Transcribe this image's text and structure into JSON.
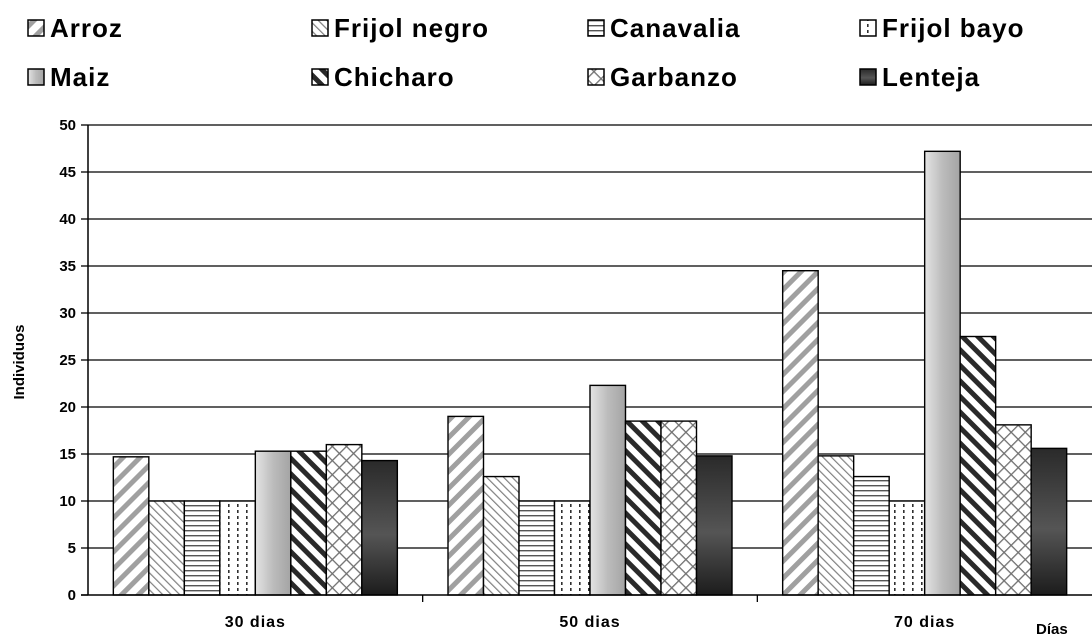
{
  "chart_data": {
    "type": "bar",
    "title": "",
    "xlabel": "Días",
    "ylabel": "Individuos",
    "ylim": [
      0,
      50
    ],
    "ytick_step": 5,
    "ytick_labels": [
      "0",
      "5",
      "10",
      "15",
      "20",
      "25",
      "30",
      "35",
      "40",
      "45",
      "50"
    ],
    "categories": [
      "30 dias",
      "50 dias",
      "70 dias"
    ],
    "grid": "horizontal",
    "legend_position": "top",
    "series": [
      {
        "name": "Arroz",
        "values": [
          14.7,
          19.0,
          34.5
        ],
        "pattern": "wide-diagonal-down",
        "color": "#a0a0a0"
      },
      {
        "name": "Frijol negro",
        "values": [
          10.0,
          12.6,
          14.8
        ],
        "pattern": "light-diagonal-up",
        "color": "#808080"
      },
      {
        "name": "Canavalia",
        "values": [
          10.0,
          10.0,
          12.6
        ],
        "pattern": "horizontal-lines",
        "color": "#606060"
      },
      {
        "name": "Frijol bayo",
        "values": [
          10.0,
          10.0,
          10.0
        ],
        "pattern": "dotted-vertical",
        "color": "#404040"
      },
      {
        "name": "Maiz",
        "values": [
          15.3,
          22.3,
          47.2
        ],
        "pattern": "gradient-grey",
        "color": "#b8b8b8"
      },
      {
        "name": "Chicharo",
        "values": [
          15.3,
          18.5,
          27.5
        ],
        "pattern": "dark-diagonal-up",
        "color": "#303030"
      },
      {
        "name": "Garbanzo",
        "values": [
          16.0,
          18.5,
          18.1
        ],
        "pattern": "diagonal-crosshatch",
        "color": "#707070"
      },
      {
        "name": "Lenteja",
        "values": [
          14.3,
          14.8,
          15.6
        ],
        "pattern": "gradient-dark",
        "color": "#303030"
      }
    ]
  }
}
